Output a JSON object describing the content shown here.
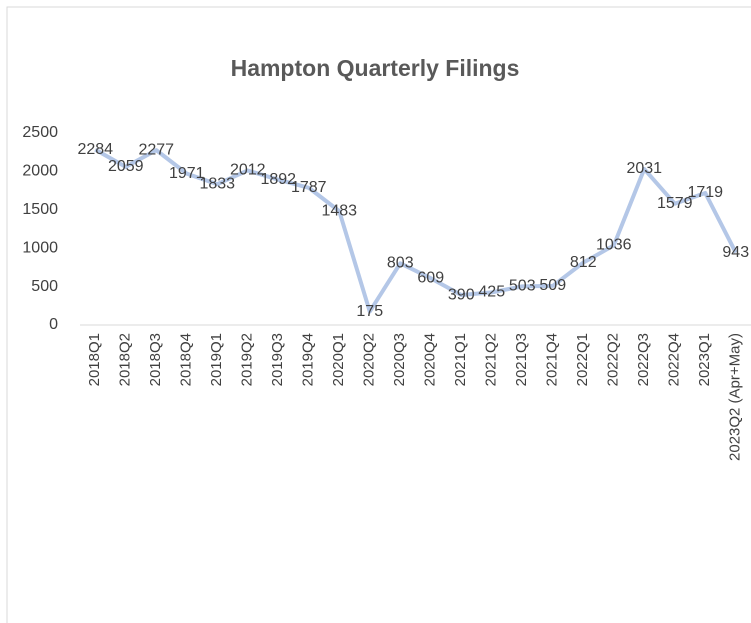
{
  "chart_data": {
    "type": "line",
    "title": "Hampton Quarterly Filings",
    "categories": [
      "2018Q1",
      "2018Q2",
      "2018Q3",
      "2018Q4",
      "2019Q1",
      "2019Q2",
      "2019Q3",
      "2019Q4",
      "2020Q1",
      "2020Q2",
      "2020Q3",
      "2020Q4",
      "2021Q1",
      "2021Q2",
      "2021Q3",
      "2021Q4",
      "2022Q1",
      "2022Q2",
      "2022Q3",
      "2022Q4",
      "2023Q1",
      "2023Q2 (Apr+May)"
    ],
    "values": [
      2284,
      2059,
      2277,
      1971,
      1833,
      2012,
      1892,
      1787,
      1483,
      175,
      803,
      609,
      390,
      425,
      503,
      509,
      812,
      1036,
      2031,
      1579,
      1719,
      943
    ],
    "color": "#b4c7e7",
    "ylim": [
      0,
      2500
    ],
    "yticks": [
      0,
      500,
      1000,
      1500,
      2000,
      2500
    ],
    "grid": false
  }
}
